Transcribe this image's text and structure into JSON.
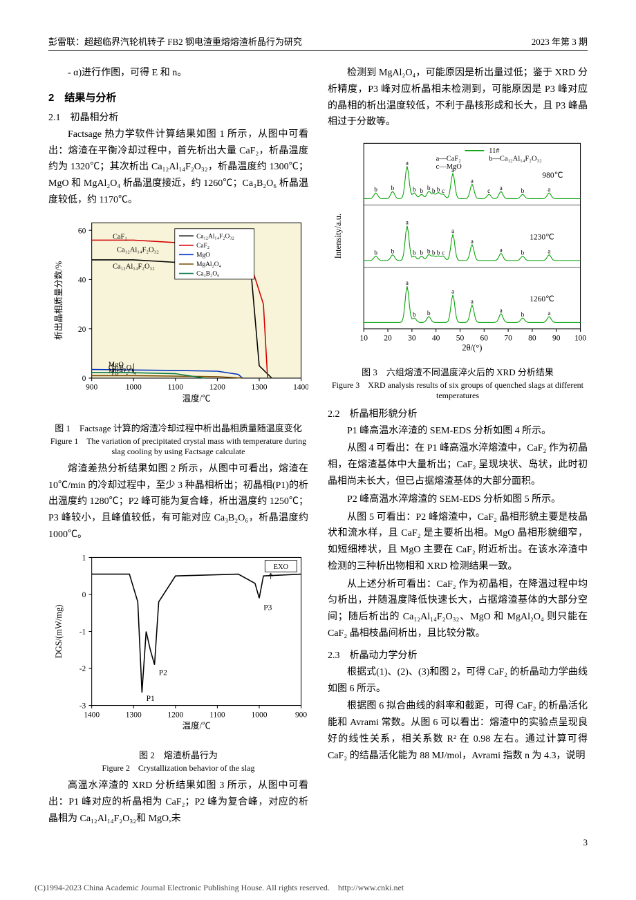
{
  "header": {
    "left": "彭雷联：超超临界汽轮机转子 FB2 钢电渣重熔熔渣析晶行为研究",
    "right": "2023 年第 3 期"
  },
  "col1": {
    "para1": "- α)进行作图，可得 E 和 n。",
    "sec2": "2　结果与分析",
    "sec21": "2.1　初晶相分析",
    "para2": "Factsage 热力学软件计算结果如图 1 所示，从图中可看出：熔渣在平衡冷却过程中，首先析出大量 CaF₂，析晶温度约为 1320℃；其次析出 Ca₁₂Al₁₄F₂O₃₂，析晶温度约 1300℃；MgO 和 MgAl₂O₄ 析晶温度接近，约 1260℃；Ca₃B₂O₆ 析晶温度较低，约 1170℃。",
    "fig1": {
      "caption_cn": "图 1　Factsage 计算的熔渣冷却过程中析出晶相质量随温度变化",
      "caption_en": "Figure 1　The variation of precipitated crystal mass with temperature during slag cooling by using Factsage calculate",
      "xlabel": "温度/℃",
      "ylabel": "析出晶相质量分数/%",
      "xlim": [
        900,
        1400
      ],
      "ylim": [
        0,
        63
      ],
      "xticks": [
        900,
        1000,
        1100,
        1200,
        1300,
        1400
      ],
      "yticks": [
        0,
        20,
        40,
        60
      ],
      "bg_color": "#f7f4d9",
      "series": [
        {
          "name": "Ca₁₂Al₁₄F₂O₃₂",
          "color": "#000000",
          "label_pos": [
            960,
            50
          ],
          "top_label": "Ca₁₂Al₁₄F₂O₃₂",
          "pts": [
            [
              900,
              48
            ],
            [
              1000,
              48
            ],
            [
              1100,
              47
            ],
            [
              1200,
              47
            ],
            [
              1280,
              44
            ],
            [
              1300,
              5
            ],
            [
              1330,
              0
            ]
          ]
        },
        {
          "name": "CaF₂",
          "color": "#d40000",
          "top_label": "CaF₂",
          "pts": [
            [
              900,
              56
            ],
            [
              1000,
              56
            ],
            [
              1100,
              55
            ],
            [
              1200,
              53
            ],
            [
              1280,
              46
            ],
            [
              1310,
              30
            ],
            [
              1320,
              0
            ]
          ]
        },
        {
          "name": "MgO",
          "color": "#0030c0",
          "label_pos": [
            940,
            3.5
          ],
          "pts": [
            [
              900,
              3.5
            ],
            [
              1000,
              3.3
            ],
            [
              1100,
              3.1
            ],
            [
              1200,
              2.8
            ],
            [
              1250,
              1.5
            ],
            [
              1260,
              0
            ]
          ]
        },
        {
          "name": "MgAl₂O₄",
          "color": "#7a4a00",
          "label_pos": [
            940,
            0.8
          ],
          "pts": [
            [
              900,
              1
            ],
            [
              1000,
              1
            ],
            [
              1100,
              0.8
            ],
            [
              1200,
              0.6
            ],
            [
              1260,
              0
            ]
          ]
        },
        {
          "name": "Ca₃B₂O₆",
          "color": "#0a7a4a",
          "label_pos": [
            940,
            2.2
          ],
          "pts": [
            [
              900,
              2.3
            ],
            [
              1000,
              2.2
            ],
            [
              1100,
              1.8
            ],
            [
              1170,
              0
            ]
          ]
        }
      ],
      "legend_items": [
        "Ca₁₂Al₁₄F₂O₃₂",
        "CaF₂",
        "MgO",
        "MgAl₂O₄",
        "Ca₃B₂O₆"
      ],
      "legend_colors": [
        "#000000",
        "#d40000",
        "#0030c0",
        "#7a4a00",
        "#0a7a4a"
      ]
    },
    "para3": "熔渣差热分析结果如图 2 所示，从图中可看出，熔渣在 10℃/min 的冷却过程中，至少 3 种晶相析出；初晶相(P1)的析出温度约 1280℃；P2 峰可能为复合峰，析出温度约 1250℃；P3 峰较小，且峰值较低，有可能对应 Ca₃B₂O₆，析晶温度约 1000℃。",
    "fig2": {
      "caption_cn": "图 2　熔渣析晶行为",
      "caption_en": "Figure 2　Crystallization behavior of the slag",
      "xlabel": "温度/℃",
      "ylabel": "DGS/(mW/mg)",
      "xlim_rev": [
        1400,
        900
      ],
      "ylim": [
        -3,
        1
      ],
      "xticks": [
        1400,
        1300,
        1200,
        1100,
        1000,
        900
      ],
      "yticks": [
        -3,
        -2,
        -1,
        0,
        1
      ],
      "line_color": "#000000",
      "exo_label": "EXO",
      "peaks": {
        "P1": [
          1280,
          -2.6
        ],
        "P2": [
          1250,
          -1.9
        ],
        "P3": [
          1000,
          -0.15
        ]
      },
      "baseline_y": 0.55,
      "pts": [
        [
          1400,
          0.55
        ],
        [
          1310,
          0.55
        ],
        [
          1290,
          -0.2
        ],
        [
          1280,
          -2.65
        ],
        [
          1270,
          -1.0
        ],
        [
          1260,
          -1.5
        ],
        [
          1250,
          -1.9
        ],
        [
          1240,
          -0.2
        ],
        [
          1200,
          0.5
        ],
        [
          1050,
          0.55
        ],
        [
          1010,
          0.3
        ],
        [
          1000,
          -0.1
        ],
        [
          990,
          0.5
        ],
        [
          900,
          0.55
        ]
      ]
    },
    "para4": "高温水淬渣的 XRD 分析结果如图 3 所示，从图中可看出：P1 峰对应的析晶相为 CaF₂；P2 峰为复合峰，对应的析晶相为 Ca₁₂Al₁₄F₂O₃₂和 MgO,未"
  },
  "col2": {
    "para5": "检测到 MgAl₂O₄，可能原因是析出量过低；鉴于 XRD 分析精度，P3 峰对应析晶相未检测到，可能原因是 P3 峰对应的晶相的析出温度较低，不利于晶核形成和长大，且 P3 峰晶相过于分散等。",
    "fig3": {
      "caption_cn": "图 3　六组熔渣不同温度淬火后的 XRD 分析结果",
      "caption_en": "Figure 3　XRD analysis results of six groups of quenched slags at different temperatures",
      "xlabel": "2θ/(°)",
      "ylabel": "Intensity/a.u.",
      "xlim": [
        10,
        100
      ],
      "xticks": [
        10,
        20,
        30,
        40,
        50,
        60,
        70,
        80,
        90,
        100
      ],
      "legend": {
        "a": "CaF₂",
        "b": "Ca₁₂Al₁₄F₂O₃₂",
        "c": "MgO",
        "sample": "11#",
        "temps": [
          "980℃",
          "1230℃",
          "1260℃"
        ]
      },
      "line_color": "#00a000",
      "panels": [
        {
          "temp": "980℃",
          "peaks": [
            [
              15,
              8,
              "b"
            ],
            [
              22,
              10,
              "b"
            ],
            [
              28,
              45,
              "a"
            ],
            [
              31,
              8,
              "b"
            ],
            [
              34,
              6,
              "b"
            ],
            [
              37,
              10,
              "b"
            ],
            [
              39,
              6,
              "b"
            ],
            [
              41,
              8,
              "b"
            ],
            [
              43,
              6,
              "c"
            ],
            [
              47,
              35,
              "a"
            ],
            [
              55,
              20,
              "a"
            ],
            [
              62,
              6,
              "c"
            ],
            [
              67,
              10,
              "a"
            ],
            [
              76,
              6,
              "b"
            ],
            [
              87,
              8,
              "a"
            ]
          ]
        },
        {
          "temp": "1230℃",
          "peaks": [
            [
              15,
              6,
              "b"
            ],
            [
              22,
              8,
              "b"
            ],
            [
              28,
              48,
              "a"
            ],
            [
              31,
              6,
              "b"
            ],
            [
              34,
              6,
              "b"
            ],
            [
              37,
              8,
              "b"
            ],
            [
              39,
              6,
              "b"
            ],
            [
              41,
              6,
              "b"
            ],
            [
              43,
              6,
              "c"
            ],
            [
              47,
              36,
              "a"
            ],
            [
              55,
              22,
              "a"
            ],
            [
              67,
              10,
              "a"
            ],
            [
              76,
              6,
              "b"
            ],
            [
              87,
              8,
              "a"
            ]
          ]
        },
        {
          "temp": "1260℃",
          "peaks": [
            [
              28,
              50,
              "a"
            ],
            [
              31,
              6,
              "b"
            ],
            [
              37,
              8,
              "b"
            ],
            [
              47,
              38,
              "a"
            ],
            [
              55,
              24,
              "a"
            ],
            [
              67,
              12,
              "a"
            ],
            [
              76,
              6,
              "b"
            ],
            [
              87,
              8,
              "a"
            ]
          ]
        }
      ]
    },
    "sec22": "2.2　析晶相形貌分析",
    "para6": "P1 峰高温水淬渣的 SEM-EDS 分析如图 4 所示。",
    "para7": "从图 4 可看出：在 P1 峰高温水淬熔渣中，CaF₂ 作为初晶相，在熔渣基体中大量析出；CaF₂ 呈现块状、岛状，此时初晶相尚未长大，但已占据熔渣基体的大部分面积。",
    "para8": "P2 峰高温水淬熔渣的 SEM-EDS 分析如图 5 所示。",
    "para9": "从图 5 可看出：P2 峰熔渣中，CaF₂ 晶相形貌主要是枝晶状和流水样，且 CaF₂ 是主要析出相。MgO 晶相形貌细窄，如短细棒状，且 MgO 主要在 CaF₂ 附近析出。在该水淬渣中检测的三种析出物相和 XRD 检测结果一致。",
    "para10": "从上述分析可看出：CaF₂ 作为初晶相，在降温过程中均匀析出，并随温度降低快速长大，占据熔渣基体的大部分空间；随后析出的 Ca₁₂Al₁₄F₂O₃₂、MgO 和 MgAl₂O₄ 则只能在 CaF₂ 晶相枝晶间析出，且比较分散。",
    "sec23": "2.3　析晶动力学分析",
    "para11": "根据式(1)、(2)、(3)和图 2，可得 CaF₂ 的析晶动力学曲线如图 6 所示。",
    "para12": "根据图 6 拟合曲线的斜率和截距，可得 CaF₂ 的析晶活化能和 Avrami 常数。从图 6 可以看出：熔渣中的实验点呈现良好的线性关系，相关系数 R² 在 0.98 左右。通过计算可得 CaF₂ 的结晶活化能为 88 MJ/mol，Avrami 指数 n 为 4.3，说明"
  },
  "page_num": "3",
  "footer": "(C)1994-2023 China Academic Journal Electronic Publishing House. All rights reserved.　http://www.cnki.net"
}
